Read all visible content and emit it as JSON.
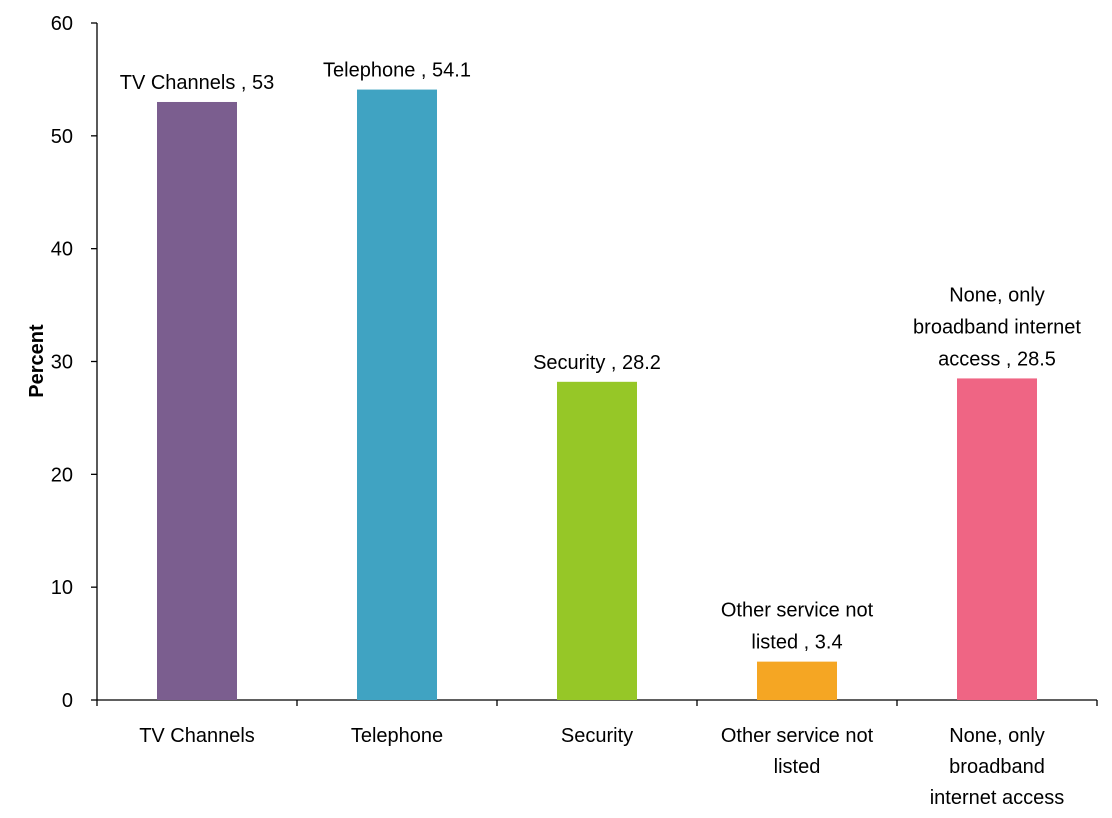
{
  "chart_data": {
    "type": "bar",
    "title": "",
    "xlabel": "",
    "ylabel": "Percent",
    "ylim": [
      0,
      60
    ],
    "yticks": [
      0,
      10,
      20,
      30,
      40,
      50,
      60
    ],
    "grid": false,
    "legend": "none",
    "categories": [
      "TV Channels",
      "Telephone",
      "Security",
      "Other service not listed",
      "None, only broadband internet access"
    ],
    "category_label_lines": [
      [
        "TV Channels"
      ],
      [
        "Telephone"
      ],
      [
        "Security"
      ],
      [
        "Other service not",
        "listed"
      ],
      [
        "None, only",
        "broadband",
        "internet access"
      ]
    ],
    "values": [
      53,
      54.1,
      28.2,
      3.4,
      28.5
    ],
    "data_label_lines": [
      [
        "TV Channels , 53"
      ],
      [
        "Telephone , 54.1"
      ],
      [
        "Security , 28.2"
      ],
      [
        "Other service not",
        "listed , 3.4"
      ],
      [
        "None, only",
        "broadband internet",
        "access , 28.5"
      ]
    ],
    "colors": [
      "#7B5E8F",
      "#40A3C2",
      "#96C727",
      "#F5A623",
      "#EF6584"
    ]
  }
}
